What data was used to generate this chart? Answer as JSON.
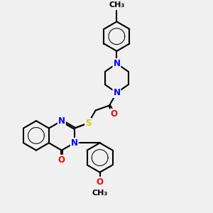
{
  "background_color": "#f0f0f0",
  "line_color": "#000000",
  "bond_width": 1.5,
  "atom_colors": {
    "N": "#0000ff",
    "O": "#ff0000",
    "S": "#cccc00",
    "C": "#000000"
  },
  "font_size": 8.5
}
